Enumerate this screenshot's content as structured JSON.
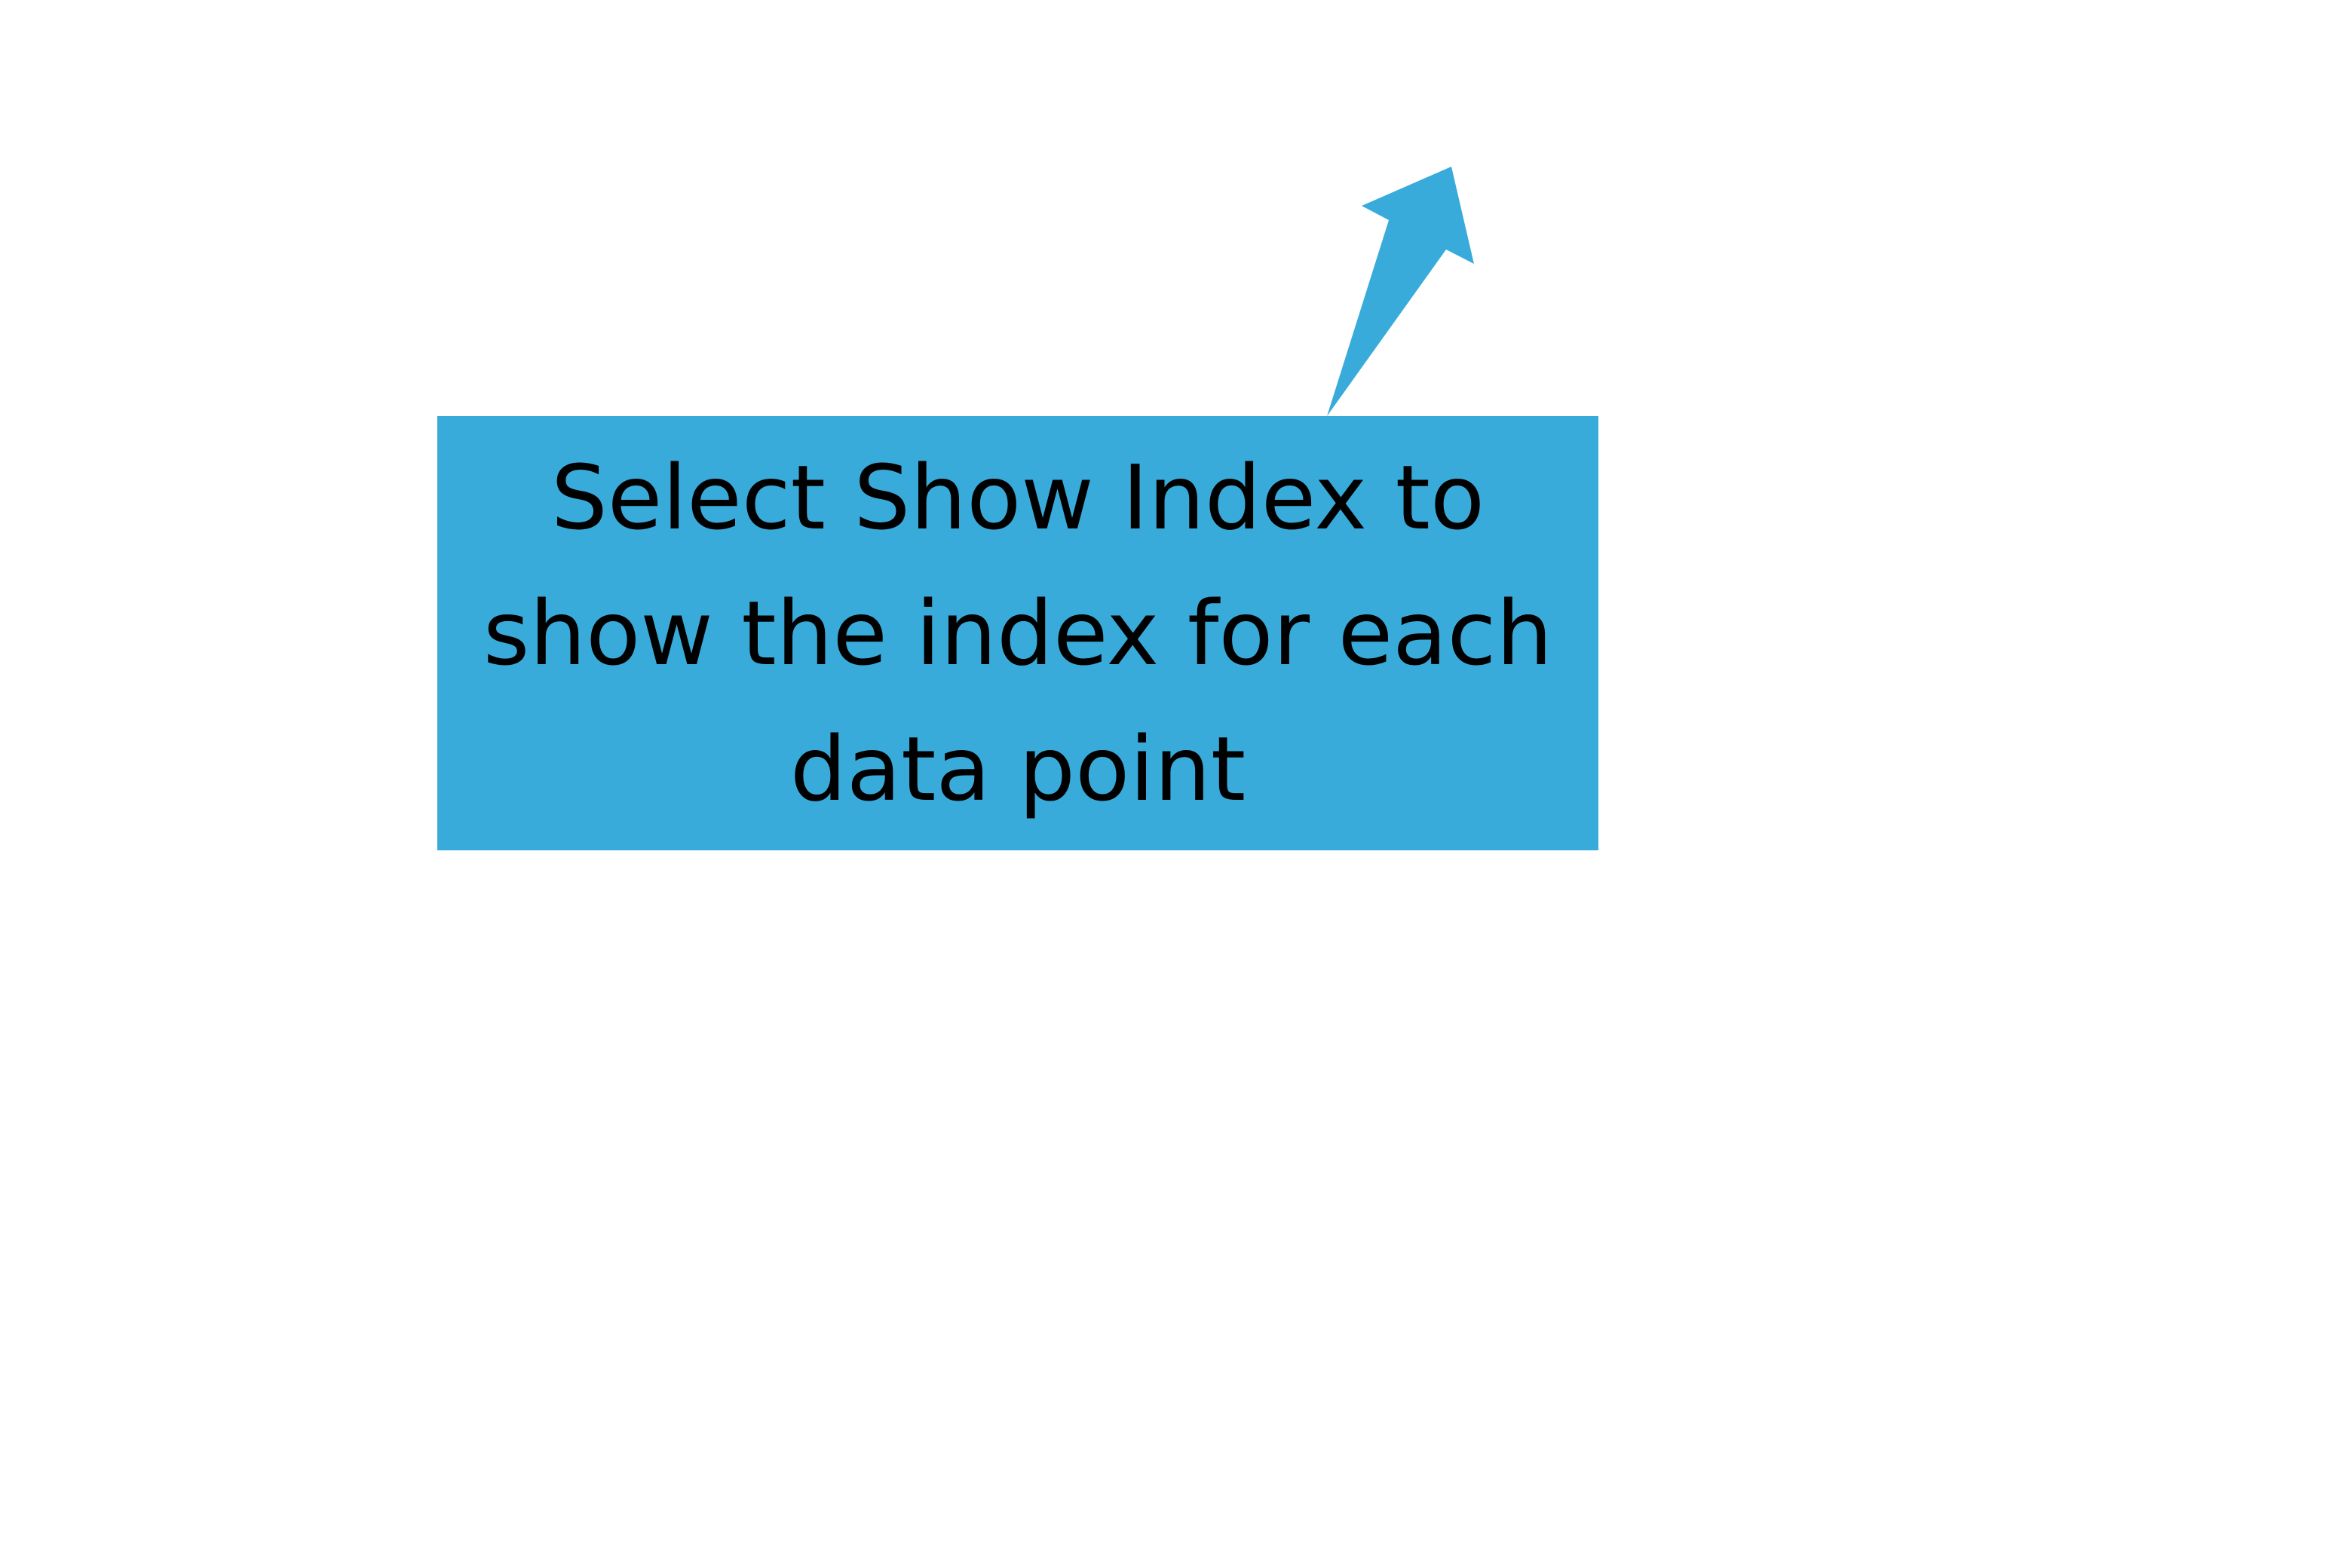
{
  "callout": {
    "text": "Select Show Index to show the index for each data point",
    "fill_color": "#38ABDA",
    "text_color": "#000000",
    "icon": "arrow-up-right-icon"
  }
}
